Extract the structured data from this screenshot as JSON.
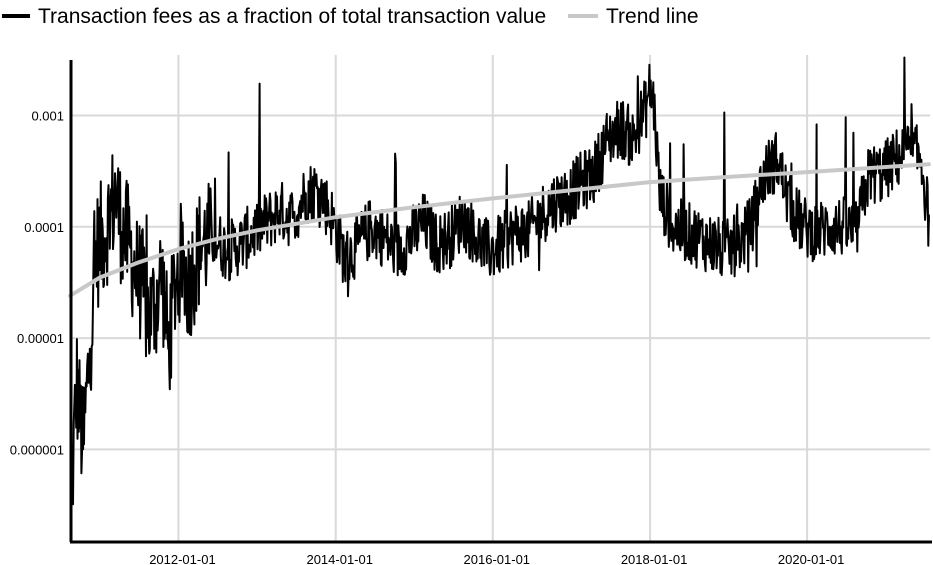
{
  "chart_data": {
    "type": "line",
    "title": "",
    "xlabel": "",
    "ylabel": "",
    "x_axis": {
      "type": "date",
      "range": [
        "2010-08-15",
        "2021-07-25"
      ],
      "ticks": [
        "2012-01-01",
        "2014-01-01",
        "2016-01-01",
        "2018-01-01",
        "2020-01-01"
      ]
    },
    "y_axis": {
      "scale": "log",
      "range": [
        1.5e-07,
        0.0035
      ],
      "ticks": [
        {
          "value": 0.001,
          "label": "0.001"
        },
        {
          "value": 0.0001,
          "label": "0.0001"
        },
        {
          "value": 1e-05,
          "label": "0.00001"
        },
        {
          "value": 1e-06,
          "label": "0.000001"
        }
      ]
    },
    "grid": true,
    "legend_position": "top-left",
    "series": [
      {
        "name": "Transaction fees as a fraction of total transaction value",
        "color": "#000000",
        "x": [
          "2010-08-20",
          "2010-09-15",
          "2010-10-15",
          "2010-11-15",
          "2010-12-15",
          "2011-01-15",
          "2011-02-15",
          "2011-03-15",
          "2011-04-15",
          "2011-05-15",
          "2011-06-15",
          "2011-07-15",
          "2011-08-15",
          "2011-09-15",
          "2011-10-15",
          "2011-11-15",
          "2011-12-15",
          "2012-01-15",
          "2012-02-15",
          "2012-03-15",
          "2012-04-15",
          "2012-06-15",
          "2012-08-15",
          "2012-10-15",
          "2012-12-15",
          "2013-02-15",
          "2013-04-15",
          "2013-06-15",
          "2013-08-15",
          "2013-10-15",
          "2013-12-15",
          "2014-02-15",
          "2014-04-15",
          "2014-06-15",
          "2014-08-15",
          "2014-10-15",
          "2014-12-15",
          "2015-02-15",
          "2015-04-15",
          "2015-06-15",
          "2015-08-15",
          "2015-10-15",
          "2015-12-15",
          "2016-02-15",
          "2016-04-15",
          "2016-06-15",
          "2016-08-15",
          "2016-10-15",
          "2016-12-15",
          "2017-02-15",
          "2017-04-15",
          "2017-06-15",
          "2017-08-15",
          "2017-10-15",
          "2017-11-15",
          "2017-12-15",
          "2018-01-01",
          "2018-01-20",
          "2018-02-15",
          "2018-04-15",
          "2018-06-15",
          "2018-08-15",
          "2018-10-15",
          "2018-12-15",
          "2019-02-15",
          "2019-04-15",
          "2019-06-15",
          "2019-08-15",
          "2019-10-15",
          "2019-12-15",
          "2020-02-15",
          "2020-04-15",
          "2020-06-15",
          "2020-08-15",
          "2020-10-15",
          "2020-12-15",
          "2021-02-15",
          "2021-04-15",
          "2021-06-15",
          "2021-07-20"
        ],
        "values": [
          3e-07,
          4e-06,
          1e-06,
          8e-06,
          6e-05,
          8e-05,
          0.00012,
          0.0002,
          9e-05,
          7e-05,
          4e-05,
          3e-05,
          1.5e-05,
          2e-05,
          4e-05,
          8e-06,
          3e-05,
          5e-05,
          3e-05,
          4.5e-05,
          7e-05,
          8e-05,
          6e-05,
          7e-05,
          9e-05,
          0.00011,
          0.00014,
          0.00012,
          0.0002,
          0.00022,
          0.00012,
          5e-05,
          7e-05,
          0.0001,
          8e-05,
          6e-05,
          8e-05,
          0.00011,
          7e-05,
          8e-05,
          0.00012,
          8e-05,
          6e-05,
          7e-05,
          9e-05,
          9e-05,
          0.00013,
          0.00017,
          0.00019,
          0.00025,
          0.0003,
          0.0006,
          0.0008,
          0.0006,
          0.0009,
          0.0012,
          0.0018,
          0.0012,
          0.0002,
          0.0001,
          9e-05,
          8e-05,
          7e-05,
          6e-05,
          7e-05,
          0.0001,
          0.0003,
          0.0004,
          0.00015,
          0.0001,
          9e-05,
          0.0001,
          0.0001,
          9e-05,
          0.0003,
          0.0003,
          0.0004,
          0.0005,
          0.0004,
          0.00011
        ]
      },
      {
        "name": "Trend line",
        "color": "#c8c8c8",
        "x": [
          "2010-08-15",
          "2011-01-01",
          "2011-07-01",
          "2012-01-01",
          "2012-07-01",
          "2013-01-01",
          "2014-01-01",
          "2015-01-01",
          "2016-01-01",
          "2017-01-01",
          "2018-01-01",
          "2019-01-01",
          "2020-01-01",
          "2021-01-01",
          "2021-07-20"
        ],
        "values": [
          2.4e-05,
          3.5e-05,
          4.8e-05,
          6.3e-05,
          7.8e-05,
          9.3e-05,
          0.000122,
          0.00015,
          0.00018,
          0.000213,
          0.000252,
          0.000281,
          0.00031,
          0.000345,
          0.000365
        ]
      }
    ]
  }
}
